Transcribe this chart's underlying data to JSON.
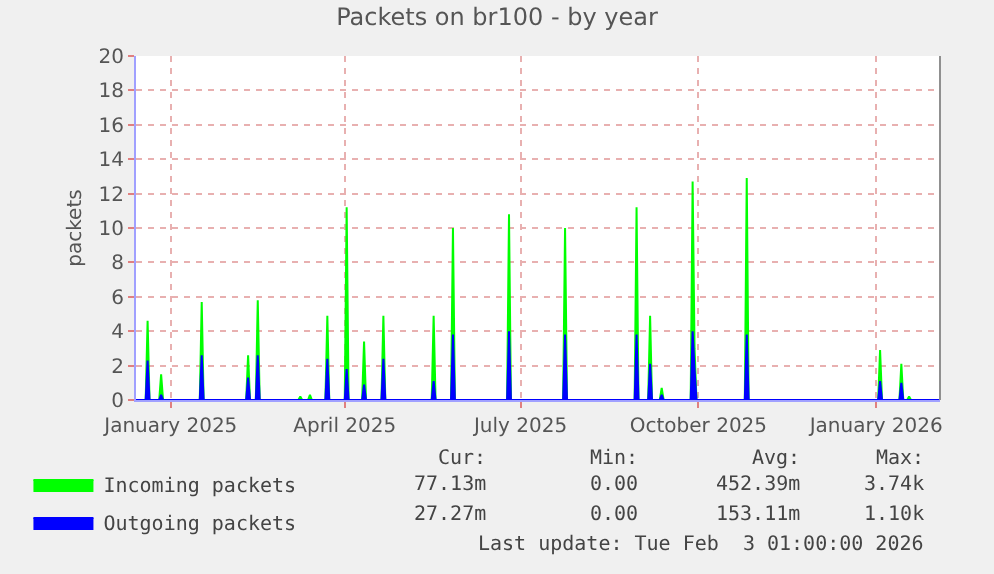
{
  "chart_data": {
    "type": "area",
    "title": "Packets on br100 - by year",
    "ylabel": "packets",
    "x": [
      "2024-12-14",
      "2024-12-19",
      "2024-12-20",
      "2024-12-21",
      "2024-12-26",
      "2024-12-27",
      "2024-12-28",
      "2025-01-16",
      "2025-01-17",
      "2025-01-18",
      "2025-02-09",
      "2025-02-10",
      "2025-02-11",
      "2025-02-14",
      "2025-02-15",
      "2025-02-16",
      "2025-03-08",
      "2025-03-09",
      "2025-03-10",
      "2025-03-13",
      "2025-03-14",
      "2025-03-15",
      "2025-03-22",
      "2025-03-23",
      "2025-03-24",
      "2025-04-01",
      "2025-04-02",
      "2025-04-03",
      "2025-04-10",
      "2025-04-11",
      "2025-04-12",
      "2025-04-20",
      "2025-04-21",
      "2025-04-22",
      "2025-05-16",
      "2025-05-17",
      "2025-05-18",
      "2025-05-26",
      "2025-05-27",
      "2025-05-28",
      "2025-06-24",
      "2025-06-25",
      "2025-06-26",
      "2025-07-23",
      "2025-07-24",
      "2025-07-25",
      "2025-08-29",
      "2025-08-30",
      "2025-08-31",
      "2025-09-05",
      "2025-09-06",
      "2025-09-07",
      "2025-09-11",
      "2025-09-12",
      "2025-09-13",
      "2025-09-27",
      "2025-09-28",
      "2025-09-29",
      "2025-09-30",
      "2025-10-25",
      "2025-10-26",
      "2025-10-27",
      "2026-01-02",
      "2026-01-03",
      "2026-01-04",
      "2026-01-13",
      "2026-01-14",
      "2026-01-15",
      "2026-01-17",
      "2026-01-18",
      "2026-01-19",
      "2026-02-03"
    ],
    "series": [
      {
        "name": "Incoming packets",
        "color": "#00ff00",
        "values": [
          0,
          0,
          4.6,
          0,
          0,
          1.5,
          0,
          0,
          5.7,
          0,
          0,
          2.6,
          0,
          0,
          5.8,
          0,
          0,
          0.2,
          0,
          0,
          0.3,
          0,
          0,
          4.9,
          0,
          0,
          11.2,
          0,
          0,
          3.4,
          0,
          0,
          4.9,
          0,
          0,
          4.9,
          0,
          0,
          10,
          0,
          0,
          10.8,
          0,
          0,
          10,
          0,
          0,
          11.2,
          0,
          0,
          4.9,
          0,
          0,
          0.7,
          0,
          0,
          12.7,
          3,
          0,
          0,
          12.9,
          0,
          0,
          2.9,
          0,
          0,
          2.1,
          0,
          0,
          0.2,
          0,
          0
        ]
      },
      {
        "name": "Outgoing packets",
        "color": "#0000ff",
        "values": [
          0,
          0,
          2.3,
          0,
          0,
          0.3,
          0,
          0,
          2.6,
          0,
          0,
          1.3,
          0,
          0,
          2.6,
          0,
          0,
          0,
          0,
          0,
          0,
          0,
          0,
          2.4,
          0,
          0,
          1.8,
          0,
          0,
          0.9,
          0,
          0,
          2.4,
          0,
          0,
          1.1,
          0,
          0,
          3.8,
          0,
          0,
          4,
          0,
          0,
          3.8,
          0,
          0,
          3.8,
          0,
          0,
          2.1,
          0,
          0,
          0.3,
          0,
          0,
          4,
          1.8,
          0,
          0,
          3.8,
          0,
          0,
          1.1,
          0,
          0,
          1,
          0,
          0,
          0,
          0,
          0
        ]
      }
    ],
    "xlim": [
      "2024-12-14",
      "2026-02-03"
    ],
    "xticks": [
      {
        "value": "2025-01-01",
        "label": "January 2025"
      },
      {
        "value": "2025-04-01",
        "label": "April 2025"
      },
      {
        "value": "2025-07-01",
        "label": "July 2025"
      },
      {
        "value": "2025-10-01",
        "label": "October 2025"
      },
      {
        "value": "2026-01-01",
        "label": "January 2026"
      }
    ],
    "ylim": [
      0,
      20
    ],
    "yticks": [
      0,
      2,
      4,
      6,
      8,
      10,
      12,
      14,
      16,
      18,
      20
    ],
    "grid": true,
    "legend": "bottom left",
    "annotations": [
      "Cur:",
      "Min:",
      "Avg:",
      "Max:",
      "77.13m",
      "0.00",
      "452.39m",
      "3.74k",
      "27.27m",
      "0.00",
      "153.11m",
      "1.10k",
      "Last update: Tue Feb  3 01:00:00 2026"
    ]
  }
}
